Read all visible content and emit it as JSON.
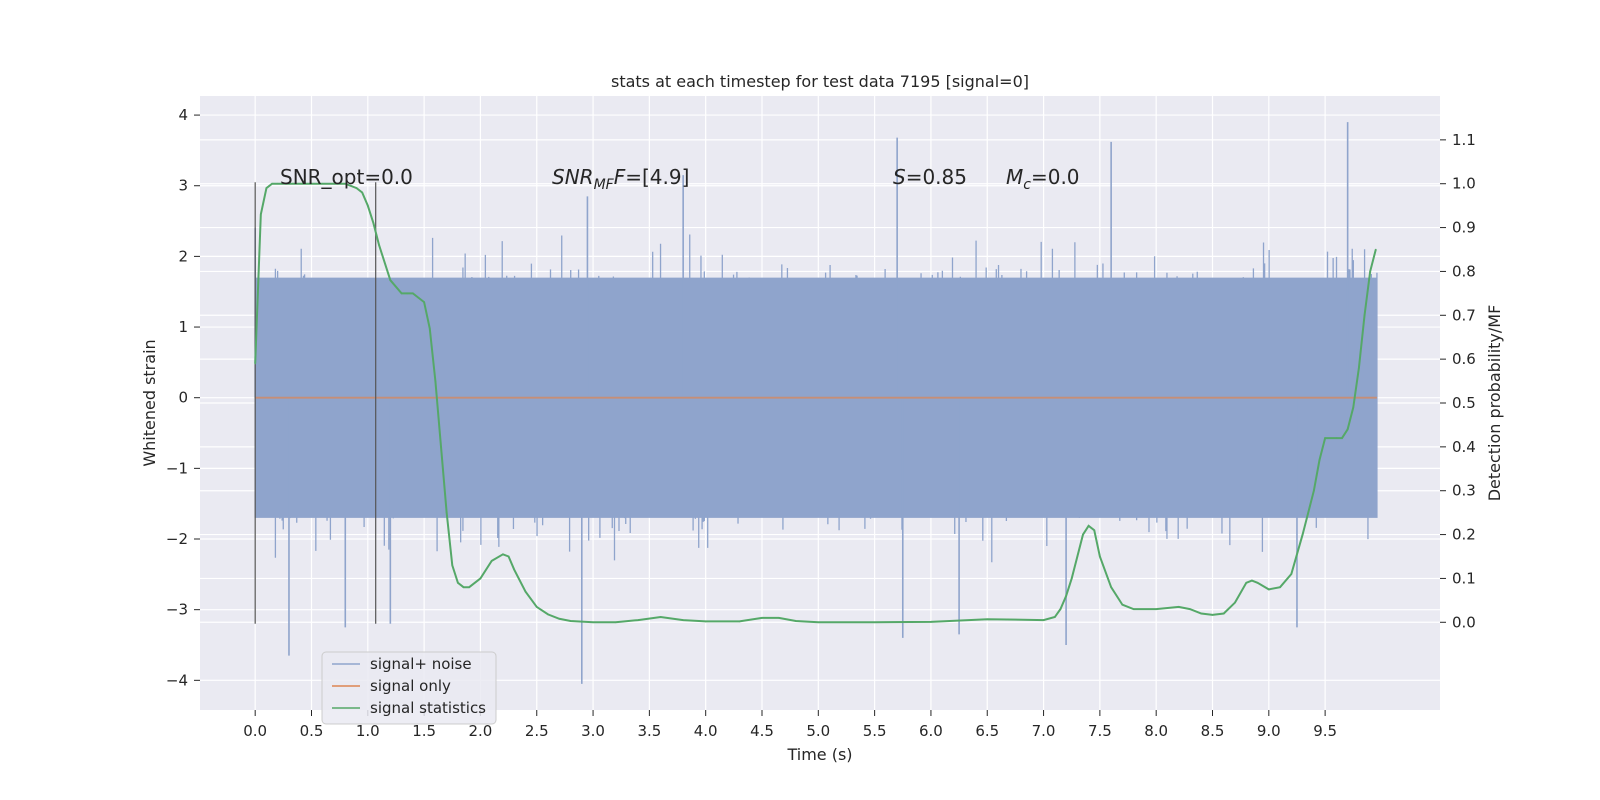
{
  "chart_data": {
    "type": "line",
    "title": "stats at each timestep for test data 7195 [signal=0]",
    "xlabel": "Time (s)",
    "ylabel": "Whitened strain",
    "y2label": "Detection probability/MF",
    "xlim": [
      -0.49,
      10.52
    ],
    "ylim": [
      -4.42,
      4.27
    ],
    "y2lim": [
      -0.2,
      1.2
    ],
    "x_ticks": [
      "0.0",
      "0.5",
      "1.0",
      "1.5",
      "2.0",
      "2.5",
      "3.0",
      "3.5",
      "4.0",
      "4.5",
      "5.0",
      "5.5",
      "6.0",
      "6.5",
      "7.0",
      "7.5",
      "8.0",
      "8.5",
      "9.0",
      "9.5"
    ],
    "y_ticks": [
      "−4",
      "−3",
      "−2",
      "−1",
      "0",
      "1",
      "2",
      "3",
      "4"
    ],
    "y2_ticks": [
      "0.0",
      "0.1",
      "0.2",
      "0.3",
      "0.4",
      "0.5",
      "0.6",
      "0.7",
      "0.8",
      "0.9",
      "1.0",
      "1.1"
    ],
    "grid": true,
    "legend_position": "lower-left",
    "annotations": {
      "snr_opt": "SNR_opt=0.0",
      "snr_mf_main": "SNR",
      "snr_mf_sub": "MF",
      "snr_mf_rest": "=[4.9]",
      "s_var": "S",
      "s_rest": "=0.85",
      "mc_var": "M",
      "mc_sub": "c",
      "mc_rest": "=0.0"
    },
    "vlines": [
      0.0,
      1.07
    ],
    "series": [
      {
        "name": "signal+ noise",
        "color": "#8fa4cc",
        "description_range": [
          -2.0,
          2.0
        ],
        "peaks": [
          {
            "x": 0.0,
            "y": 2.4
          },
          {
            "x": 0.3,
            "y": -3.65
          },
          {
            "x": 0.8,
            "y": -3.25
          },
          {
            "x": 1.2,
            "y": -3.2
          },
          {
            "x": 2.9,
            "y": -4.05
          },
          {
            "x": 2.95,
            "y": 2.85
          },
          {
            "x": 3.8,
            "y": 3.15
          },
          {
            "x": 5.7,
            "y": 3.68
          },
          {
            "x": 5.75,
            "y": -3.4
          },
          {
            "x": 6.25,
            "y": -3.35
          },
          {
            "x": 7.2,
            "y": -3.5
          },
          {
            "x": 7.6,
            "y": 3.62
          },
          {
            "x": 9.7,
            "y": 3.9
          },
          {
            "x": 9.25,
            "y": -3.25
          }
        ]
      },
      {
        "name": "signal only",
        "color": "#dd8452",
        "x": [
          0.0,
          9.96
        ],
        "y": [
          0.0,
          0.0
        ]
      },
      {
        "name": "signal statistics",
        "color": "#55a868",
        "axis": "right",
        "x": [
          0.0,
          0.05,
          0.1,
          0.15,
          0.2,
          0.3,
          0.4,
          0.5,
          0.6,
          0.7,
          0.8,
          0.9,
          0.95,
          1.0,
          1.05,
          1.1,
          1.2,
          1.3,
          1.35,
          1.4,
          1.45,
          1.5,
          1.55,
          1.6,
          1.65,
          1.7,
          1.75,
          1.8,
          1.85,
          1.9,
          1.95,
          2.0,
          2.1,
          2.2,
          2.25,
          2.3,
          2.4,
          2.5,
          2.6,
          2.7,
          2.8,
          3.0,
          3.2,
          3.4,
          3.6,
          3.8,
          4.0,
          4.3,
          4.5,
          4.65,
          4.8,
          5.0,
          5.5,
          6.0,
          6.5,
          7.0,
          7.1,
          7.15,
          7.2,
          7.25,
          7.3,
          7.35,
          7.4,
          7.45,
          7.5,
          7.6,
          7.7,
          7.8,
          8.0,
          8.2,
          8.3,
          8.4,
          8.5,
          8.6,
          8.7,
          8.8,
          8.85,
          8.9,
          9.0,
          9.1,
          9.2,
          9.3,
          9.4,
          9.45,
          9.5,
          9.6,
          9.65,
          9.7,
          9.75,
          9.8,
          9.85,
          9.9,
          9.95
        ],
        "y": [
          0.59,
          0.93,
          0.99,
          1.0,
          1.0,
          1.0,
          1.0,
          1.0,
          1.0,
          1.0,
          1.0,
          0.99,
          0.98,
          0.95,
          0.91,
          0.86,
          0.78,
          0.75,
          0.75,
          0.75,
          0.74,
          0.73,
          0.67,
          0.55,
          0.4,
          0.25,
          0.13,
          0.09,
          0.08,
          0.08,
          0.09,
          0.1,
          0.14,
          0.155,
          0.15,
          0.12,
          0.07,
          0.035,
          0.018,
          0.008,
          0.003,
          0.0,
          0.0,
          0.005,
          0.012,
          0.005,
          0.002,
          0.002,
          0.01,
          0.01,
          0.003,
          0.0,
          0.0,
          0.001,
          0.007,
          0.005,
          0.012,
          0.03,
          0.06,
          0.1,
          0.15,
          0.2,
          0.22,
          0.21,
          0.15,
          0.08,
          0.04,
          0.03,
          0.03,
          0.035,
          0.03,
          0.02,
          0.017,
          0.02,
          0.045,
          0.09,
          0.095,
          0.09,
          0.075,
          0.08,
          0.11,
          0.2,
          0.3,
          0.37,
          0.42,
          0.42,
          0.42,
          0.44,
          0.49,
          0.58,
          0.7,
          0.8,
          0.85
        ]
      }
    ]
  }
}
